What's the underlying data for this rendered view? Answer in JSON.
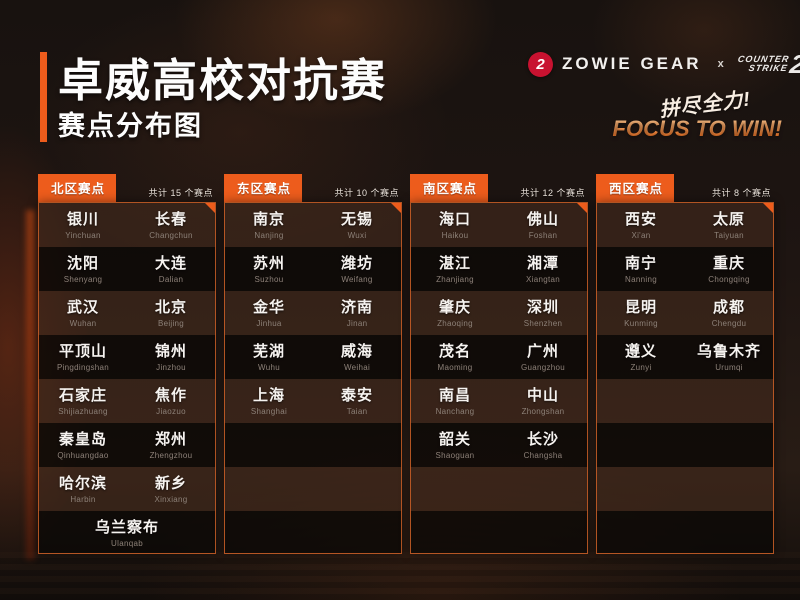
{
  "title": "卓威高校对抗赛",
  "subtitle": "赛点分布图",
  "brand": {
    "zowie_mark": "2",
    "zowie_text": "ZOWIE GEAR",
    "separator": "x",
    "cs_line1": "COUNTER",
    "cs_line2": "STRIKE",
    "cs_number": "2"
  },
  "slogan": {
    "cn": "拼尽全力!",
    "en": "FOCUS TO WIN!"
  },
  "colors": {
    "accent_orange": "#ed5c1c",
    "panel_border": "#c45c26",
    "zowie_red": "#c81230",
    "focus_gradient_top": "#f8c189",
    "focus_gradient_bottom": "#ea6d1e"
  },
  "panels": [
    {
      "label": "北区赛点",
      "count": "共计 15 个赛点",
      "rows": [
        [
          {
            "cn": "银川",
            "py": "Yinchuan"
          },
          {
            "cn": "长春",
            "py": "Changchun"
          }
        ],
        [
          {
            "cn": "沈阳",
            "py": "Shenyang"
          },
          {
            "cn": "大连",
            "py": "Dalian"
          }
        ],
        [
          {
            "cn": "武汉",
            "py": "Wuhan"
          },
          {
            "cn": "北京",
            "py": "Beijing"
          }
        ],
        [
          {
            "cn": "平顶山",
            "py": "Pingdingshan"
          },
          {
            "cn": "锦州",
            "py": "Jinzhou"
          }
        ],
        [
          {
            "cn": "石家庄",
            "py": "Shijiazhuang"
          },
          {
            "cn": "焦作",
            "py": "Jiaozuo"
          }
        ],
        [
          {
            "cn": "秦皇岛",
            "py": "Qinhuangdao"
          },
          {
            "cn": "郑州",
            "py": "Zhengzhou"
          }
        ],
        [
          {
            "cn": "哈尔滨",
            "py": "Harbin"
          },
          {
            "cn": "新乡",
            "py": "Xinxiang"
          }
        ],
        [
          {
            "cn": "乌兰察布",
            "py": "Ulanqab"
          }
        ]
      ]
    },
    {
      "label": "东区赛点",
      "count": "共计 10 个赛点",
      "rows": [
        [
          {
            "cn": "南京",
            "py": "Nanjing"
          },
          {
            "cn": "无锡",
            "py": "Wuxi"
          }
        ],
        [
          {
            "cn": "苏州",
            "py": "Suzhou"
          },
          {
            "cn": "潍坊",
            "py": "Weifang"
          }
        ],
        [
          {
            "cn": "金华",
            "py": "Jinhua"
          },
          {
            "cn": "济南",
            "py": "Jinan"
          }
        ],
        [
          {
            "cn": "芜湖",
            "py": "Wuhu"
          },
          {
            "cn": "威海",
            "py": "Weihai"
          }
        ],
        [
          {
            "cn": "上海",
            "py": "Shanghai"
          },
          {
            "cn": "泰安",
            "py": "Taian"
          }
        ]
      ]
    },
    {
      "label": "南区赛点",
      "count": "共计 12 个赛点",
      "rows": [
        [
          {
            "cn": "海口",
            "py": "Haikou"
          },
          {
            "cn": "佛山",
            "py": "Foshan"
          }
        ],
        [
          {
            "cn": "湛江",
            "py": "Zhanjiang"
          },
          {
            "cn": "湘潭",
            "py": "Xiangtan"
          }
        ],
        [
          {
            "cn": "肇庆",
            "py": "Zhaoqing"
          },
          {
            "cn": "深圳",
            "py": "Shenzhen"
          }
        ],
        [
          {
            "cn": "茂名",
            "py": "Maoming"
          },
          {
            "cn": "广州",
            "py": "Guangzhou"
          }
        ],
        [
          {
            "cn": "南昌",
            "py": "Nanchang"
          },
          {
            "cn": "中山",
            "py": "Zhongshan"
          }
        ],
        [
          {
            "cn": "韶关",
            "py": "Shaoguan"
          },
          {
            "cn": "长沙",
            "py": "Changsha"
          }
        ]
      ]
    },
    {
      "label": "西区赛点",
      "count": "共计 8 个赛点",
      "rows": [
        [
          {
            "cn": "西安",
            "py": "Xi'an"
          },
          {
            "cn": "太原",
            "py": "Taiyuan"
          }
        ],
        [
          {
            "cn": "南宁",
            "py": "Nanning"
          },
          {
            "cn": "重庆",
            "py": "Chongqing"
          }
        ],
        [
          {
            "cn": "昆明",
            "py": "Kunming"
          },
          {
            "cn": "成都",
            "py": "Chengdu"
          }
        ],
        [
          {
            "cn": "遵义",
            "py": "Zunyi"
          },
          {
            "cn": "乌鲁木齐",
            "py": "Urumqi"
          }
        ]
      ]
    }
  ]
}
